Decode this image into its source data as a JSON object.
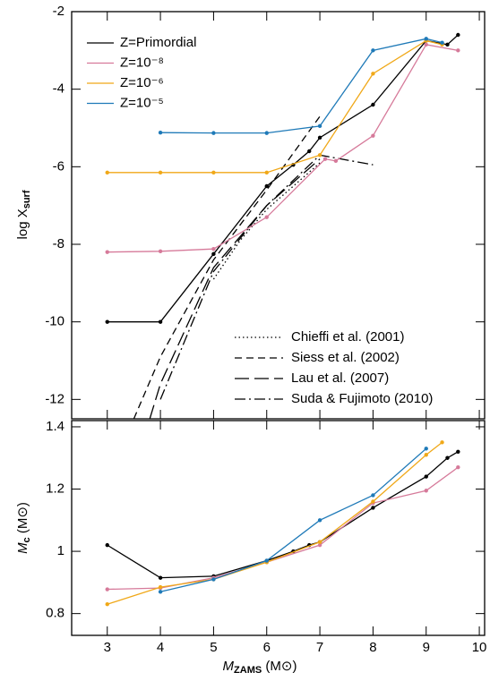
{
  "chart_data": [
    {
      "type": "line",
      "ylabel": "log X",
      "ylabel_sub": "surf",
      "xlim": [
        2.33,
        10.1
      ],
      "ylim": [
        -12.5,
        -2
      ],
      "yticks": [
        -12,
        -10,
        -8,
        -6,
        -4,
        -2
      ],
      "legend_loc": "upper-left",
      "reference_legend_loc": "lower-right",
      "markers": true,
      "series": [
        {
          "name": "Z=Primordial",
          "color": "#000000",
          "x": [
            3,
            4,
            5,
            6,
            6.5,
            6.8,
            7,
            8,
            9,
            9.4,
            9.6
          ],
          "values": [
            -10,
            -10,
            -8.25,
            -6.5,
            -5.95,
            -5.6,
            -5.25,
            -4.4,
            -2.75,
            -2.85,
            -2.6
          ]
        },
        {
          "name": "Z=10⁻⁸",
          "color": "#d67a9a",
          "x": [
            3,
            4,
            5,
            6,
            7.1,
            7.3,
            8,
            9,
            9.6
          ],
          "values": [
            -8.2,
            -8.18,
            -8.12,
            -7.3,
            -5.8,
            -5.85,
            -5.2,
            -2.85,
            -3.0
          ]
        },
        {
          "name": "Z=10⁻⁶",
          "color": "#f0a818",
          "x": [
            3,
            4,
            5,
            6,
            7,
            8,
            9,
            9.3
          ],
          "values": [
            -6.15,
            -6.15,
            -6.15,
            -6.15,
            -5.7,
            -3.6,
            -2.75,
            -2.85
          ]
        },
        {
          "name": "Z=10⁻⁵",
          "color": "#1f7ab8",
          "x": [
            4,
            5,
            6,
            7,
            8,
            9,
            9.3
          ],
          "values": [
            -5.12,
            -5.13,
            -5.13,
            -4.95,
            -3.0,
            -2.7,
            -2.8
          ]
        }
      ],
      "reference_series": [
        {
          "name": "Chieffi et al. (2001)",
          "color": "#000000",
          "style": "dotted",
          "x": [
            5,
            5.5,
            6,
            6.5,
            7
          ],
          "values": [
            -8.9,
            -7.9,
            -7.1,
            -6.5,
            -5.9
          ]
        },
        {
          "name": "Siess et al. (2002)",
          "color": "#000000",
          "style": "dashed",
          "x": [
            3.5,
            4,
            5,
            6,
            7
          ],
          "values": [
            -12.5,
            -10.9,
            -8.4,
            -6.6,
            -4.7
          ]
        },
        {
          "name": "Lau et al. (2007)",
          "color": "#000000",
          "style": "longdash",
          "x": [
            3.8,
            4,
            5,
            6,
            7
          ],
          "values": [
            -12.5,
            -11.6,
            -8.6,
            -7.0,
            -5.8
          ]
        },
        {
          "name": "Suda & Fujimoto (2010)",
          "color": "#000000",
          "style": "dashdot",
          "x": [
            4,
            5,
            6,
            7,
            8
          ],
          "values": [
            -12.0,
            -8.7,
            -7.0,
            -5.7,
            -5.95
          ]
        }
      ]
    },
    {
      "type": "line",
      "ylabel": "M",
      "ylabel_sub": "c",
      "ylabel_unit": " (M⊙)",
      "xlabel": "M",
      "xlabel_sub": "ZAMS",
      "xlabel_unit": " (M⊙)",
      "xlim": [
        2.33,
        10.1
      ],
      "xticks": [
        3,
        4,
        5,
        6,
        7,
        8,
        9,
        10
      ],
      "ylim": [
        0.73,
        1.42
      ],
      "yticks": [
        0.8,
        1,
        1.2,
        1.4
      ],
      "markers": true,
      "series": [
        {
          "color": "#000000",
          "x": [
            3,
            4,
            5,
            6,
            6.5,
            6.8,
            7,
            8,
            9,
            9.4,
            9.6
          ],
          "values": [
            1.02,
            0.915,
            0.92,
            0.97,
            1.0,
            1.02,
            1.03,
            1.14,
            1.24,
            1.3,
            1.32
          ]
        },
        {
          "color": "#d67a9a",
          "x": [
            3,
            4,
            5,
            6,
            7,
            8,
            9,
            9.6
          ],
          "values": [
            0.878,
            0.882,
            0.915,
            0.965,
            1.02,
            1.155,
            1.195,
            1.27
          ]
        },
        {
          "color": "#f0a818",
          "x": [
            3,
            4,
            5,
            6,
            7,
            8,
            9,
            9.3
          ],
          "values": [
            0.83,
            0.885,
            0.91,
            0.965,
            1.03,
            1.16,
            1.31,
            1.35
          ]
        },
        {
          "color": "#1f7ab8",
          "x": [
            4,
            5,
            6,
            7,
            8,
            9
          ],
          "values": [
            0.87,
            0.91,
            0.97,
            1.1,
            1.18,
            1.33
          ]
        }
      ]
    }
  ]
}
